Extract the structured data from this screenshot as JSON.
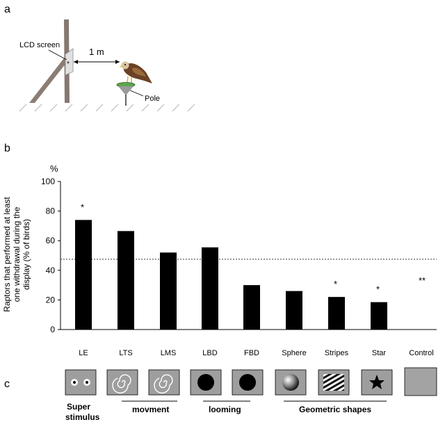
{
  "panels": {
    "a": "a",
    "b": "b",
    "c": "c"
  },
  "setup": {
    "screen_label": "LCD screen",
    "distance_label": "1 m",
    "pole_label": "Pole",
    "screen_marker": "*"
  },
  "chart_data": {
    "type": "bar",
    "unit_label": "%",
    "ylabel": "Raptors that performed at least one withdrawal during the display (% of birds)",
    "ylabel_lines": [
      "Raptors that performed at least",
      "one withdrawal  during the",
      "display (% of birds)"
    ],
    "ylim": [
      0,
      100
    ],
    "yticks": [
      0,
      20,
      40,
      60,
      80,
      100
    ],
    "categories": [
      "LE",
      "LTS",
      "LMS",
      "LBD",
      "FBD",
      "Sphere",
      "Stripes",
      "Star",
      "Control"
    ],
    "values": [
      74,
      66.5,
      52,
      55.5,
      30,
      26,
      22,
      18.5,
      0
    ],
    "significance": [
      "*",
      "",
      "",
      "",
      "",
      "",
      "*",
      "*",
      "**"
    ],
    "reference_line": 47.5,
    "bar_color": "#000000"
  },
  "stimulus_groups": [
    {
      "label": "Super",
      "label2": "stimulus"
    },
    {
      "label": "movment"
    },
    {
      "label": "looming"
    },
    {
      "label": "Geometric shapes"
    }
  ]
}
